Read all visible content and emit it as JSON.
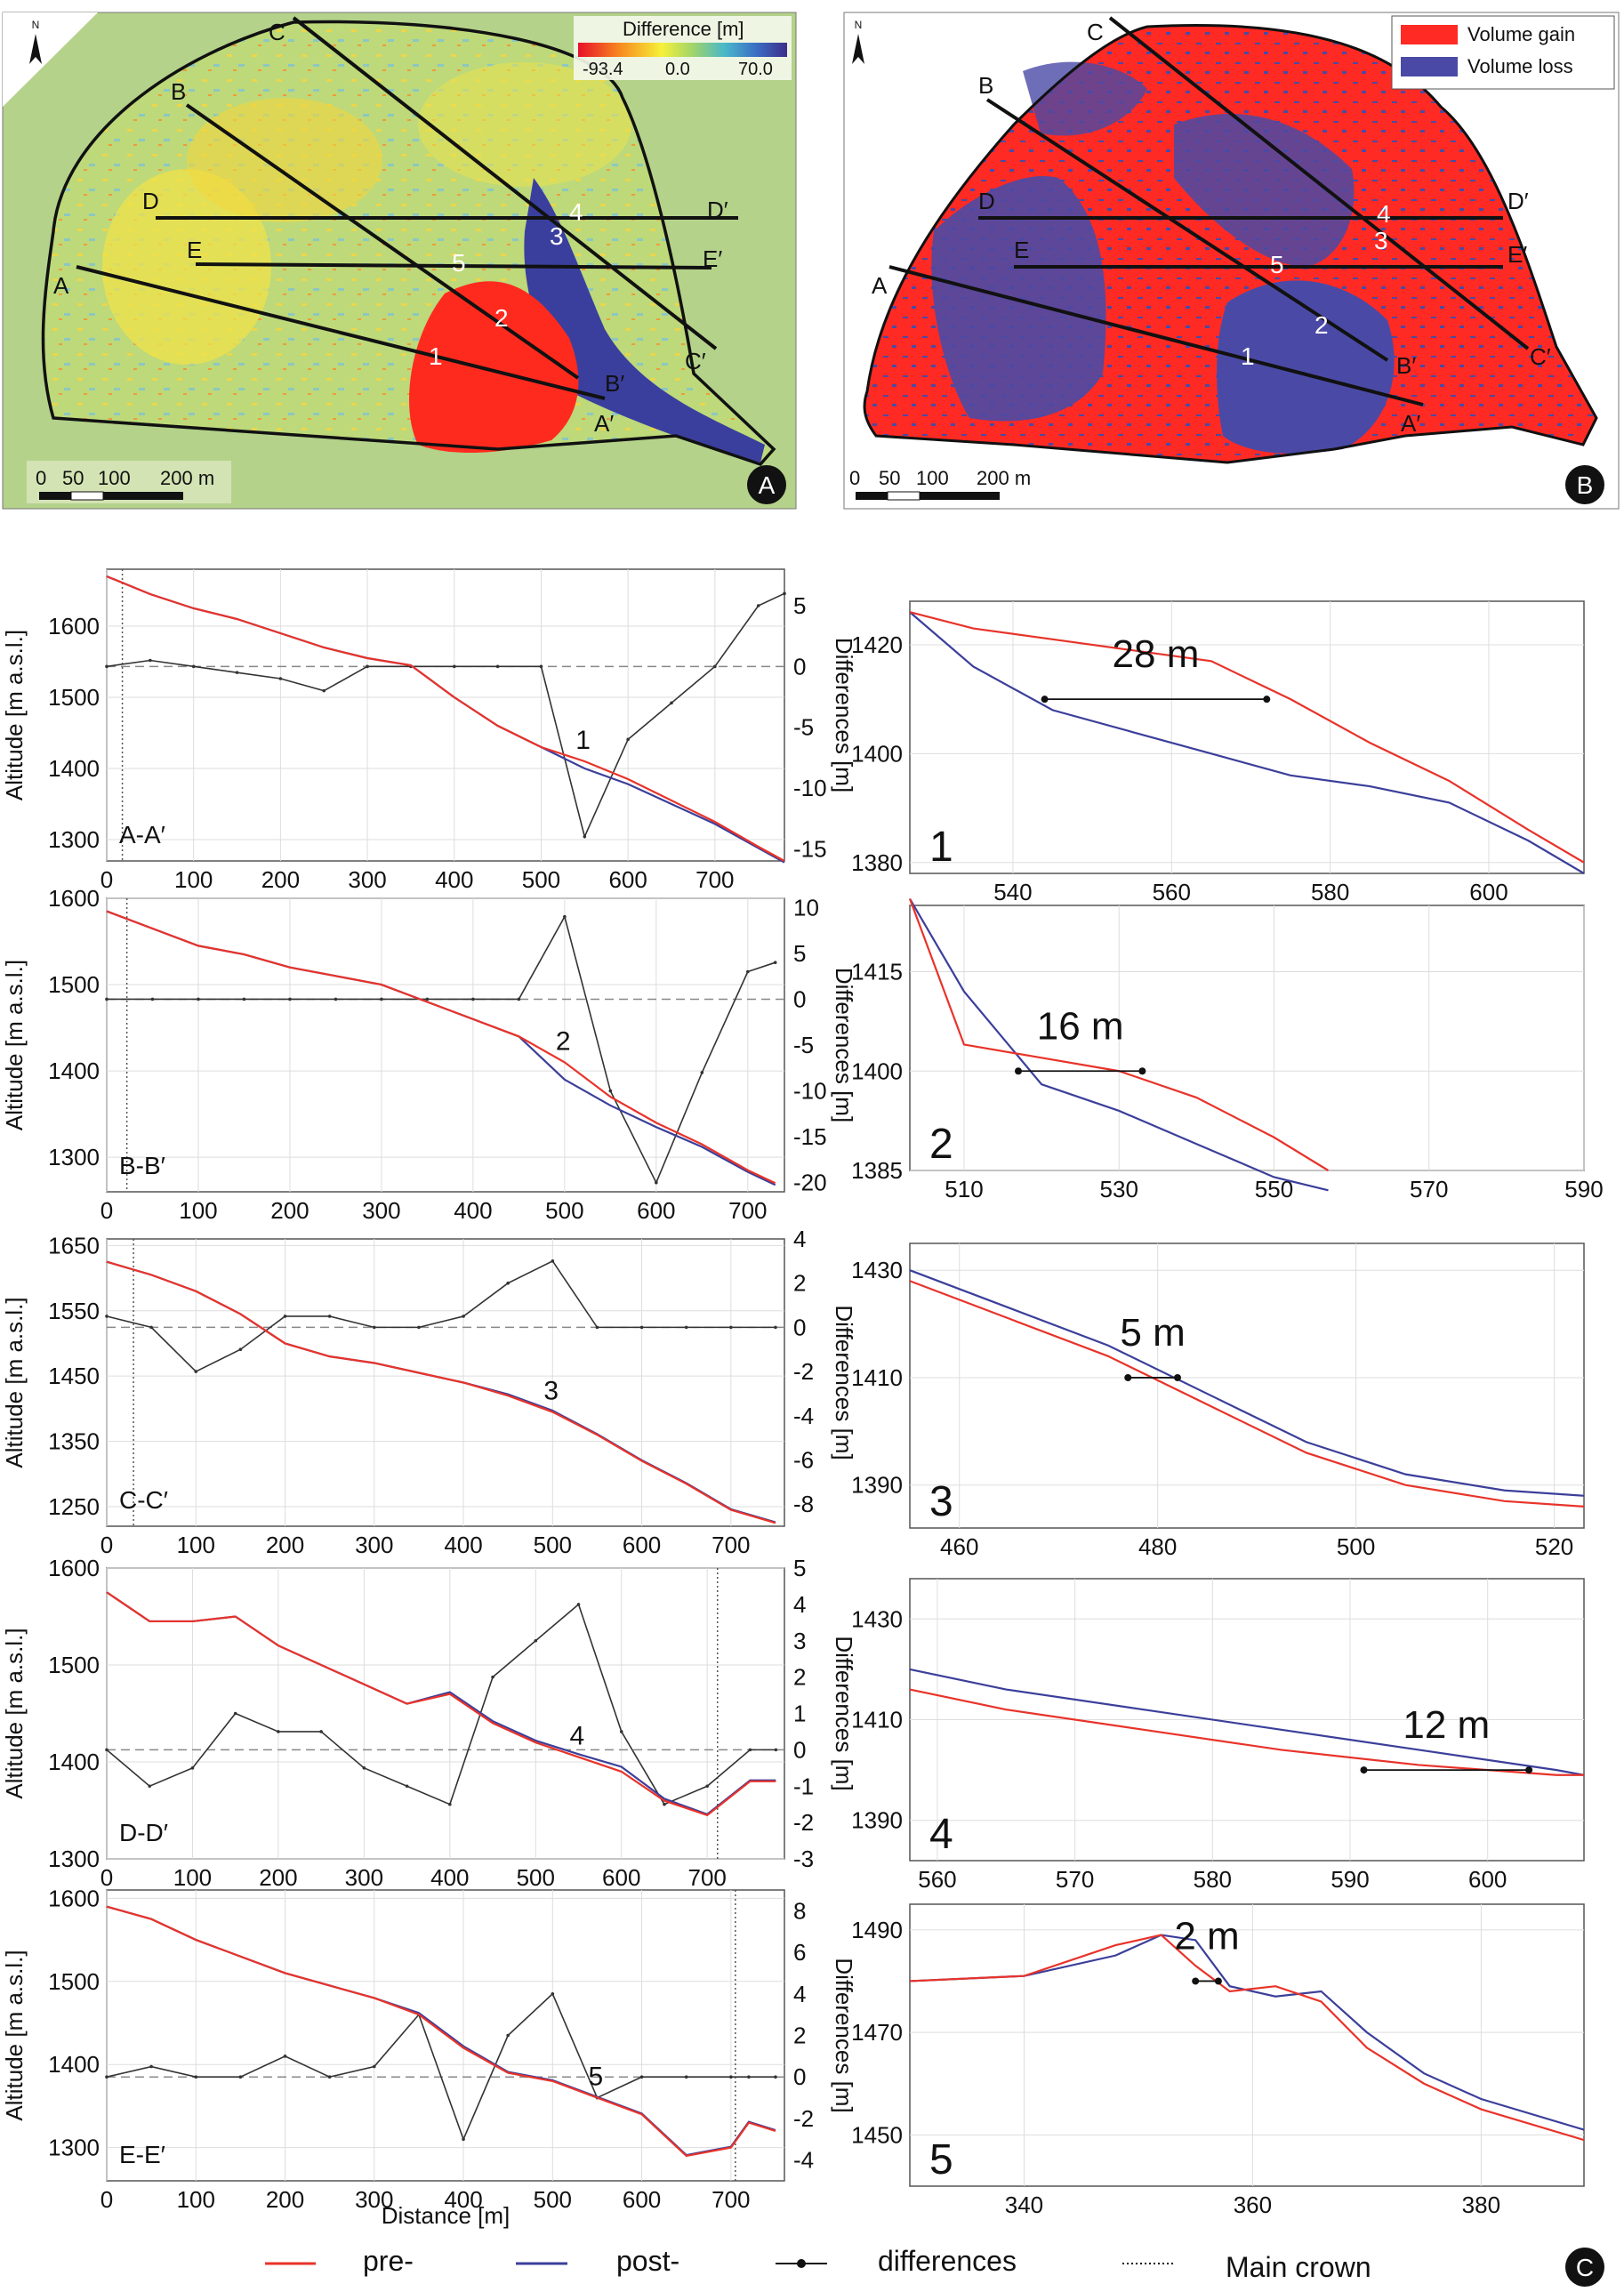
{
  "colors": {
    "pre": "#e8332a",
    "post": "#3b3f9a",
    "diff": "#333333",
    "gain": "#ff2a24",
    "loss": "#4a4aa6"
  },
  "panel_a": {
    "legend_title": "Difference [m]",
    "legend_min": "-93.4",
    "legend_mid": "0.0",
    "legend_max": "70.0",
    "scale_labels": [
      "0",
      "50",
      "100",
      "200 m"
    ],
    "badge": "A",
    "north": "N",
    "line_labels": [
      "A",
      "A′",
      "B",
      "B′",
      "C",
      "C′",
      "D",
      "D′",
      "E",
      "E′"
    ],
    "points": [
      "1",
      "2",
      "3",
      "4",
      "5"
    ]
  },
  "panel_b": {
    "legend_gain": "Volume gain",
    "legend_loss": "Volume loss",
    "scale_labels": [
      "0",
      "50",
      "100",
      "200 m"
    ],
    "badge": "B",
    "north": "N",
    "line_labels": [
      "A",
      "A′",
      "B",
      "B′",
      "C",
      "C′",
      "D",
      "D′",
      "E",
      "E′"
    ],
    "points": [
      "1",
      "2",
      "3",
      "4",
      "5"
    ]
  },
  "profiles_common": {
    "ylabel": "Altitude [m a.s.l.]",
    "y2label": "Differences [m]",
    "xlabel": "Distance [m]"
  },
  "chart_data": [
    {
      "type": "line",
      "id": "A",
      "section": "A-A′",
      "marker": "1",
      "x": [
        0,
        50,
        100,
        150,
        200,
        250,
        300,
        350,
        400,
        450,
        500,
        550,
        600,
        650,
        700,
        750,
        780
      ],
      "series": [
        {
          "name": "pre-",
          "values": [
            1670,
            1645,
            1625,
            1610,
            1590,
            1570,
            1555,
            1545,
            1500,
            1460,
            1430,
            1410,
            1385,
            1355,
            1325,
            1290,
            1270
          ]
        },
        {
          "name": "post-",
          "values": [
            1670,
            1645,
            1625,
            1610,
            1590,
            1570,
            1555,
            1545,
            1500,
            1460,
            1430,
            1400,
            1378,
            1350,
            1322,
            1288,
            1268
          ]
        },
        {
          "name": "differences",
          "values": [
            0,
            0.5,
            0,
            -0.5,
            -1,
            -2,
            0,
            0,
            0,
            0,
            0,
            -14,
            -6,
            -3,
            0,
            5,
            6
          ]
        }
      ],
      "xlim": [
        0,
        780
      ],
      "ylim": [
        1270,
        1680
      ],
      "y2lim": [
        -16,
        8
      ],
      "xticks": [
        0,
        100,
        200,
        300,
        400,
        500,
        600,
        700
      ],
      "yticks": [
        1300,
        1400,
        1500,
        1600
      ],
      "y2ticks": [
        -15,
        -10,
        -5,
        0,
        5
      ],
      "crown_x": 18
    },
    {
      "type": "line",
      "id": "B",
      "section": "B-B′",
      "marker": "2",
      "x": [
        0,
        50,
        100,
        150,
        200,
        250,
        300,
        350,
        400,
        450,
        500,
        550,
        600,
        650,
        700,
        730
      ],
      "series": [
        {
          "name": "pre-",
          "values": [
            1585,
            1565,
            1545,
            1535,
            1520,
            1510,
            1500,
            1480,
            1460,
            1440,
            1410,
            1370,
            1340,
            1315,
            1285,
            1270
          ]
        },
        {
          "name": "post-",
          "values": [
            1585,
            1565,
            1545,
            1535,
            1520,
            1510,
            1500,
            1480,
            1460,
            1440,
            1390,
            1360,
            1335,
            1312,
            1283,
            1268
          ]
        },
        {
          "name": "differences",
          "values": [
            0,
            0,
            0,
            0,
            0,
            0,
            0,
            0,
            0,
            0,
            9,
            -10,
            -20,
            -8,
            3,
            4
          ]
        }
      ],
      "xlim": [
        0,
        740
      ],
      "ylim": [
        1260,
        1600
      ],
      "y2lim": [
        -21,
        11
      ],
      "xticks": [
        0,
        100,
        200,
        300,
        400,
        500,
        600,
        700
      ],
      "yticks": [
        1300,
        1400,
        1500,
        1600
      ],
      "y2ticks": [
        -20,
        -15,
        -10,
        -5,
        0,
        5,
        10
      ],
      "crown_x": 22
    },
    {
      "type": "line",
      "id": "C",
      "section": "C-C′",
      "marker": "3",
      "x": [
        0,
        50,
        100,
        150,
        200,
        250,
        300,
        350,
        400,
        450,
        500,
        550,
        600,
        650,
        700,
        750
      ],
      "series": [
        {
          "name": "pre-",
          "values": [
            1625,
            1605,
            1580,
            1545,
            1500,
            1480,
            1470,
            1455,
            1440,
            1420,
            1395,
            1360,
            1320,
            1285,
            1245,
            1225
          ]
        },
        {
          "name": "post-",
          "values": [
            1625,
            1605,
            1580,
            1545,
            1500,
            1480,
            1470,
            1455,
            1440,
            1422,
            1397,
            1361,
            1321,
            1286,
            1246,
            1226
          ]
        },
        {
          "name": "differences",
          "values": [
            0.5,
            0,
            -2,
            -1,
            0.5,
            0.5,
            0,
            0,
            0.5,
            2,
            3,
            0,
            0,
            0,
            0,
            0
          ]
        }
      ],
      "xlim": [
        0,
        760
      ],
      "ylim": [
        1220,
        1660
      ],
      "y2lim": [
        -9,
        4
      ],
      "xticks": [
        0,
        100,
        200,
        300,
        400,
        500,
        600,
        700
      ],
      "yticks": [
        1250,
        1350,
        1450,
        1550,
        1650
      ],
      "y2ticks": [
        -8,
        -6,
        -4,
        -2,
        0,
        2,
        4
      ],
      "crown_x": 30
    },
    {
      "type": "line",
      "id": "D",
      "section": "D-D′",
      "marker": "4",
      "x": [
        0,
        50,
        100,
        150,
        200,
        250,
        300,
        350,
        400,
        450,
        500,
        550,
        600,
        650,
        700,
        750,
        780
      ],
      "series": [
        {
          "name": "pre-",
          "values": [
            1575,
            1545,
            1545,
            1550,
            1520,
            1500,
            1480,
            1460,
            1470,
            1440,
            1420,
            1405,
            1390,
            1360,
            1345,
            1380,
            1380
          ]
        },
        {
          "name": "post-",
          "values": [
            1575,
            1545,
            1545,
            1550,
            1520,
            1500,
            1480,
            1460,
            1472,
            1442,
            1422,
            1408,
            1395,
            1362,
            1346,
            1381,
            1381
          ]
        },
        {
          "name": "differences",
          "values": [
            0,
            -1,
            -0.5,
            1,
            0.5,
            0.5,
            -0.5,
            -1,
            -1.5,
            2,
            3,
            4,
            0.5,
            -1.5,
            -1,
            0,
            0
          ]
        }
      ],
      "xlim": [
        0,
        790
      ],
      "ylim": [
        1300,
        1600
      ],
      "y2lim": [
        -3,
        5
      ],
      "xticks": [
        0,
        100,
        200,
        300,
        400,
        500,
        600,
        700
      ],
      "yticks": [
        1300,
        1400,
        1500,
        1600
      ],
      "y2ticks": [
        -3,
        -2,
        -1,
        0,
        1,
        2,
        3,
        4,
        5
      ],
      "crown_x": 712
    },
    {
      "type": "line",
      "id": "E",
      "section": "E-E′",
      "marker": "5",
      "x": [
        0,
        50,
        100,
        150,
        200,
        250,
        300,
        350,
        400,
        450,
        500,
        550,
        600,
        650,
        700,
        720,
        750
      ],
      "series": [
        {
          "name": "pre-",
          "values": [
            1590,
            1575,
            1550,
            1530,
            1510,
            1495,
            1480,
            1460,
            1420,
            1390,
            1380,
            1360,
            1340,
            1290,
            1300,
            1330,
            1320
          ]
        },
        {
          "name": "post-",
          "values": [
            1590,
            1575,
            1550,
            1530,
            1510,
            1495,
            1480,
            1462,
            1422,
            1391,
            1381,
            1361,
            1341,
            1291,
            1301,
            1331,
            1321
          ]
        },
        {
          "name": "differences",
          "values": [
            0,
            0.5,
            0,
            0,
            1,
            0,
            0.5,
            3,
            -3,
            2,
            4,
            -1,
            0,
            0,
            0,
            0,
            0
          ]
        }
      ],
      "xlim": [
        0,
        760
      ],
      "ylim": [
        1260,
        1610
      ],
      "y2lim": [
        -5,
        9
      ],
      "xticks": [
        0,
        100,
        200,
        300,
        400,
        500,
        600,
        700
      ],
      "yticks": [
        1300,
        1400,
        1500,
        1600
      ],
      "y2ticks": [
        -4,
        -2,
        0,
        2,
        4,
        6,
        8
      ],
      "crown_x": 705
    },
    {
      "type": "line",
      "id": "Z1",
      "label": "1",
      "annotation": "28 m",
      "x": [
        527,
        535,
        545,
        555,
        565,
        575,
        585,
        595,
        605,
        612
      ],
      "series": [
        {
          "name": "pre-",
          "values": [
            1426,
            1423,
            1421,
            1419,
            1417,
            1410,
            1402,
            1395,
            1386,
            1380
          ]
        },
        {
          "name": "post-",
          "values": [
            1426,
            1416,
            1408,
            1404,
            1400,
            1396,
            1394,
            1391,
            1384,
            1378
          ]
        }
      ],
      "diff_x": [
        544,
        572
      ],
      "diff_y": 1410,
      "xlim": [
        527,
        612
      ],
      "ylim": [
        1378,
        1428
      ],
      "xticks": [
        540,
        560,
        580,
        600
      ],
      "yticks": [
        1380,
        1400,
        1420
      ]
    },
    {
      "type": "line",
      "id": "Z2",
      "label": "2",
      "annotation": "16 m",
      "x": [
        503,
        510,
        520,
        530,
        540,
        550,
        557
      ],
      "series": [
        {
          "name": "pre-",
          "values": [
            1426,
            1404,
            1402,
            1400,
            1396,
            1390,
            1385
          ]
        },
        {
          "name": "post-",
          "values": [
            1426,
            1412,
            1398,
            1394,
            1389,
            1384,
            1382
          ]
        }
      ],
      "diff_x": [
        517,
        533
      ],
      "diff_y": 1400,
      "xlim": [
        503,
        590
      ],
      "ylim": [
        1385,
        1425
      ],
      "xticks": [
        510,
        530,
        550,
        570,
        590
      ],
      "yticks": [
        1385,
        1400,
        1415
      ]
    },
    {
      "type": "line",
      "id": "Z3",
      "label": "3",
      "annotation": "5 m",
      "x": [
        455,
        465,
        475,
        485,
        495,
        505,
        515,
        523
      ],
      "series": [
        {
          "name": "pre-",
          "values": [
            1428,
            1421,
            1414,
            1405,
            1396,
            1390,
            1387,
            1386
          ]
        },
        {
          "name": "post-",
          "values": [
            1430,
            1423,
            1416,
            1407,
            1398,
            1392,
            1389,
            1388
          ]
        }
      ],
      "diff_x": [
        477,
        482
      ],
      "diff_y": 1410,
      "xlim": [
        455,
        523
      ],
      "ylim": [
        1382,
        1435
      ],
      "xticks": [
        460,
        480,
        500,
        520
      ],
      "yticks": [
        1390,
        1410,
        1430
      ]
    },
    {
      "type": "line",
      "id": "Z4",
      "label": "4",
      "annotation": "12 m",
      "x": [
        558,
        565,
        575,
        585,
        595,
        605,
        607
      ],
      "series": [
        {
          "name": "pre-",
          "values": [
            1416,
            1412,
            1408,
            1404,
            1401,
            1399,
            1399
          ]
        },
        {
          "name": "post-",
          "values": [
            1420,
            1416,
            1412,
            1408,
            1404,
            1400,
            1399
          ]
        }
      ],
      "diff_x": [
        591,
        603
      ],
      "diff_y": 1400,
      "xlim": [
        558,
        607
      ],
      "ylim": [
        1382,
        1438
      ],
      "xticks": [
        560,
        570,
        580,
        590,
        600
      ],
      "yticks": [
        1390,
        1410,
        1430
      ]
    },
    {
      "type": "line",
      "id": "Z5",
      "label": "5",
      "annotation": "2 m",
      "x": [
        330,
        340,
        348,
        352,
        355,
        358,
        362,
        366,
        370,
        375,
        380,
        389
      ],
      "series": [
        {
          "name": "pre-",
          "values": [
            1480,
            1481,
            1487,
            1489,
            1483,
            1478,
            1479,
            1476,
            1467,
            1460,
            1455,
            1449
          ]
        },
        {
          "name": "post-",
          "values": [
            1480,
            1481,
            1485,
            1489,
            1488,
            1479,
            1477,
            1478,
            1470,
            1462,
            1457,
            1451
          ]
        }
      ],
      "diff_x": [
        355,
        357
      ],
      "diff_y": 1480,
      "xlim": [
        330,
        389
      ],
      "ylim": [
        1440,
        1495
      ],
      "xticks": [
        340,
        360,
        380
      ],
      "yticks": [
        1450,
        1470,
        1490
      ]
    }
  ],
  "legend": {
    "pre": "pre-",
    "post": "post-",
    "differences": "differences",
    "crown": "Main crown",
    "badge": "C"
  }
}
